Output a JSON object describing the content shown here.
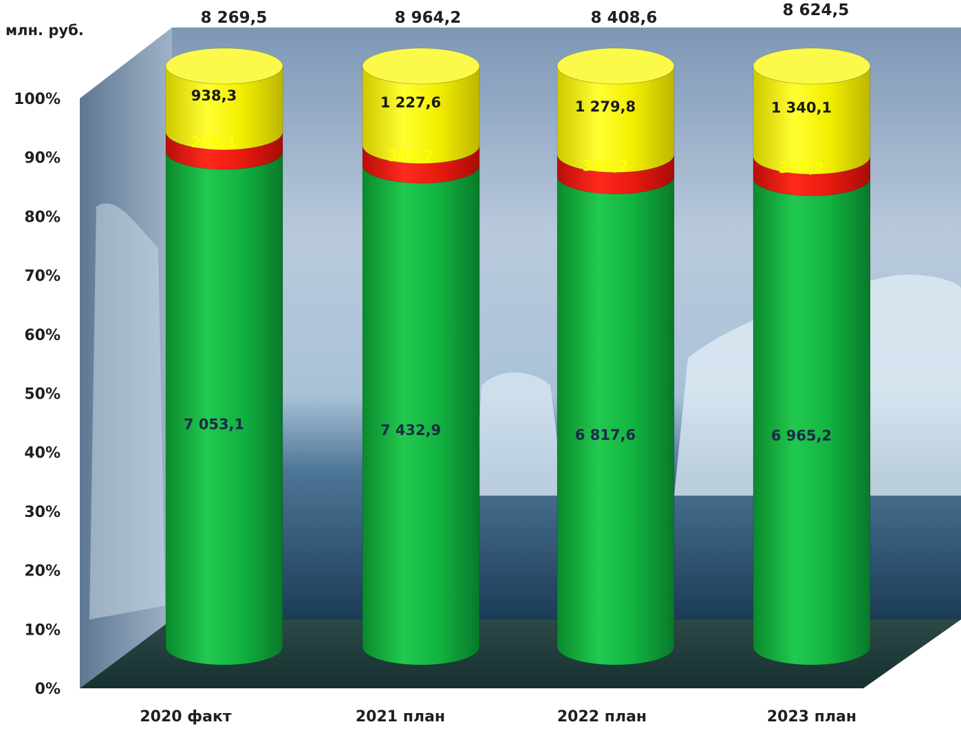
{
  "unit_label": "млн. руб.",
  "colors": {
    "bottom": "#12b340",
    "middle": "#e81a10",
    "top": "#f2ee00",
    "top_label": "#1a1a1a",
    "middle_label": "#ffff00",
    "bottom_label": "#1d2a4a",
    "total_label": "#1f1f1f",
    "axis_text": "#1f1f1f"
  },
  "chart_data": {
    "type": "bar",
    "stacked": "percent",
    "style": "3d-cylinder",
    "categories": [
      "2020 факт",
      "2021 план",
      "2022 план",
      "2023 план"
    ],
    "series": [
      {
        "key": "bottom",
        "values": [
          7053.1,
          7432.9,
          6817.6,
          6965.2
        ],
        "labels": [
          "7 053,1",
          "7 432,9",
          "6 817,6",
          "6 965,2"
        ]
      },
      {
        "key": "middle",
        "values": [
          278.1,
          303.7,
          311.2,
          319.2
        ],
        "labels": [
          "278,1",
          "303,7",
          "311,2",
          "319,2"
        ]
      },
      {
        "key": "top",
        "values": [
          938.3,
          1227.6,
          1279.8,
          1340.1
        ],
        "labels": [
          "938,3",
          "1 227,6",
          "1 279,8",
          "1 340,1"
        ]
      }
    ],
    "totals": [
      8269.5,
      8964.2,
      8408.6,
      8624.5
    ],
    "total_labels": [
      "8 269,5",
      "8 964,2",
      "8 408,6",
      "8 624,5"
    ],
    "y_ticks": [
      "0%",
      "10%",
      "20%",
      "30%",
      "40%",
      "50%",
      "60%",
      "70%",
      "80%",
      "90%",
      "100%"
    ],
    "ylim": [
      0,
      100
    ],
    "legend": "none",
    "grid": false
  }
}
